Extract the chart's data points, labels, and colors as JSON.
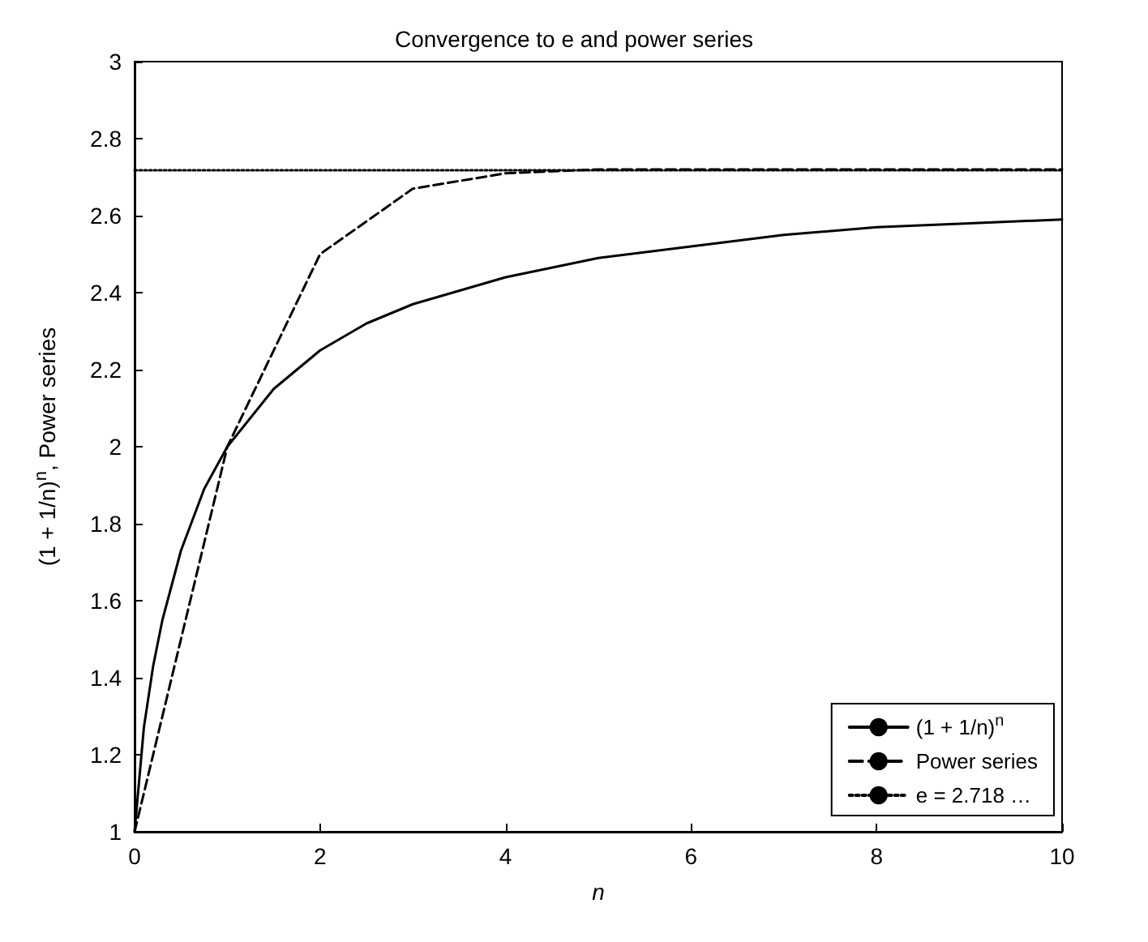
{
  "chart_data": {
    "type": "line",
    "title": "Convergence to e and power series",
    "xlabel": "n",
    "ylabel": "(1 + 1/n)$^{n}$, Power series",
    "series": [
      {
        "name": "(1 + 1/n)$^{n}$",
        "color": "#000000",
        "line_style": "solid",
        "x": [
          0,
          0.1,
          0.2,
          0.3,
          0.5,
          0.75,
          1,
          1.5,
          2,
          2.5,
          3,
          4,
          5,
          6,
          7,
          8,
          9,
          10
        ],
        "values": [
          1,
          1.27,
          1.43,
          1.55,
          1.73,
          1.89,
          2,
          2.15,
          2.25,
          2.32,
          2.37,
          2.44,
          2.49,
          2.52,
          2.55,
          2.57,
          2.58,
          2.59
        ]
      },
      {
        "name": "Power series",
        "color": "#000000",
        "line_style": "dashed",
        "x": [
          0,
          1,
          2,
          3,
          4,
          5,
          6,
          7,
          8,
          9,
          10
        ],
        "values": [
          1,
          2,
          2.5,
          2.67,
          2.71,
          2.72,
          2.72,
          2.72,
          2.72,
          2.72,
          2.72
        ]
      },
      {
        "name": "e = 2.718 …",
        "color": "#000000",
        "line_style": "dotted",
        "x": [
          0,
          10
        ],
        "values": [
          2.718,
          2.718
        ]
      }
    ],
    "xlim": [
      0,
      10
    ],
    "xticks": [
      0,
      2,
      4,
      6,
      8,
      10
    ],
    "ylim": [
      1,
      3
    ],
    "yticks": [
      1,
      1.2,
      1.4,
      1.6,
      1.8,
      2,
      2.2,
      2.4,
      2.6,
      2.8,
      3
    ],
    "grid": false,
    "legend": "bottom right",
    "marker": "none"
  }
}
